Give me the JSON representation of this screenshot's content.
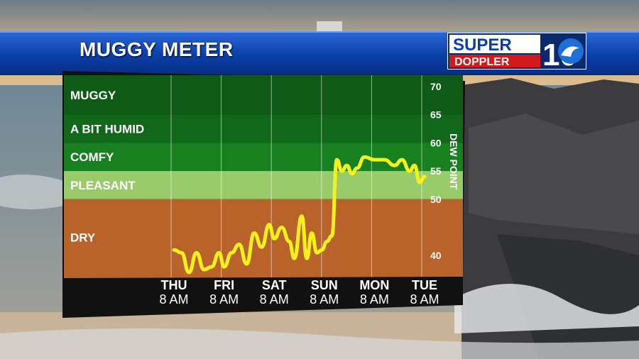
{
  "title": "MUGGY METER",
  "logo": {
    "word1": "SUPER",
    "word2": "DOPPLER",
    "number": "10"
  },
  "chart_data": {
    "type": "line",
    "title": "MUGGY METER",
    "ylabel": "DEW POINT",
    "y_ticks": [
      40,
      50,
      55,
      60,
      65,
      70
    ],
    "ylim": [
      36,
      72
    ],
    "bands": [
      {
        "label": "MUGGY",
        "from": 65,
        "to": 72,
        "color": "#0e5a16"
      },
      {
        "label": "A BIT HUMID",
        "from": 60,
        "to": 65,
        "color": "#11681a"
      },
      {
        "label": "COMFY",
        "from": 55,
        "to": 60,
        "color": "#18801f"
      },
      {
        "label": "PLEASANT",
        "from": 50,
        "to": 55,
        "color": "#9acb6b"
      },
      {
        "label": "DRY",
        "from": 36,
        "to": 50,
        "color": "#b9622a"
      }
    ],
    "x_labels": [
      {
        "day": "THU",
        "time": "8 AM"
      },
      {
        "day": "FRI",
        "time": "8 AM"
      },
      {
        "day": "SAT",
        "time": "8 AM"
      },
      {
        "day": "SUN",
        "time": "8 AM"
      },
      {
        "day": "MON",
        "time": "8 AM"
      },
      {
        "day": "TUE",
        "time": "8 AM"
      }
    ],
    "line_color": "#f4f21a",
    "series": [
      {
        "x": [
          0,
          0.15,
          0.3,
          0.45,
          0.6,
          0.75,
          0.9,
          1.0,
          1.15,
          1.3,
          1.45,
          1.6,
          1.75,
          1.9,
          2.0,
          2.15,
          2.3,
          2.4,
          2.55,
          2.65,
          2.75,
          2.85,
          2.95,
          3.05,
          3.15,
          3.25,
          3.35,
          3.45,
          3.55,
          3.65,
          3.8,
          4.0,
          4.2,
          4.4,
          4.55,
          4.7,
          4.8,
          4.9,
          5.0
        ],
        "y": [
          41,
          40.5,
          37,
          40.5,
          37.5,
          38,
          40.5,
          38,
          40.5,
          42,
          38.5,
          44,
          41.5,
          45.5,
          43,
          45,
          42.5,
          39.5,
          47,
          39.5,
          44,
          40.5,
          41,
          42.5,
          43.5,
          57,
          55,
          56,
          54.5,
          55.5,
          57.5,
          57,
          57,
          56,
          57,
          55,
          56,
          53,
          54
        ]
      }
    ]
  }
}
